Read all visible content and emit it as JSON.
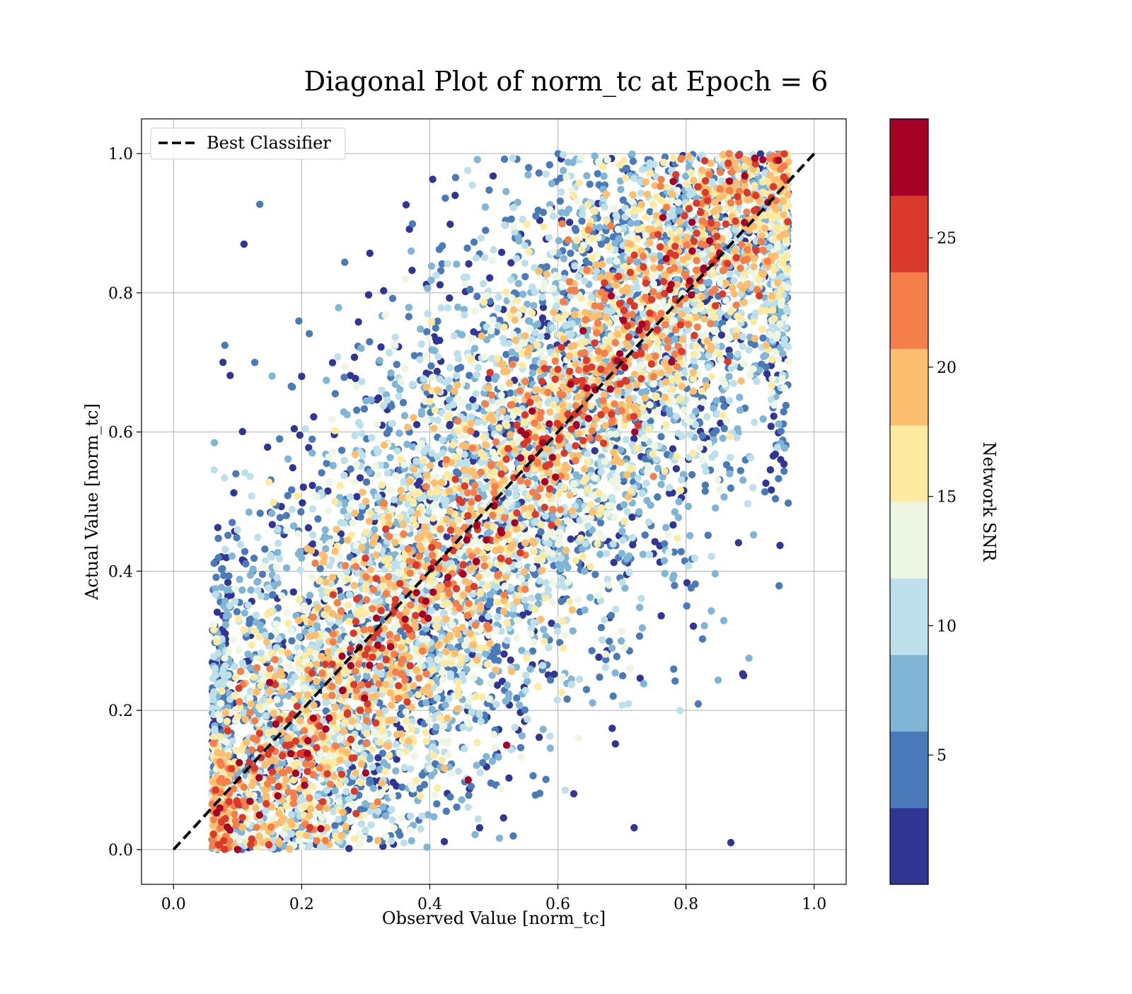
{
  "chart_data": {
    "type": "scatter",
    "title": "Diagonal Plot of norm_tc at Epoch = 6",
    "xlabel": "Observed Value [norm_tc]",
    "ylabel": "Actual Value [norm_tc]",
    "xlim": [
      -0.05,
      1.05
    ],
    "ylim": [
      -0.05,
      1.05
    ],
    "x_ticks": [
      "0.0",
      "0.2",
      "0.4",
      "0.6",
      "0.8",
      "1.0"
    ],
    "y_ticks": [
      "0.0",
      "0.2",
      "0.4",
      "0.6",
      "0.8",
      "1.0"
    ],
    "grid": true,
    "legend": {
      "placement": "top-left",
      "entries": [
        {
          "label": "Best Classifier",
          "style": "dashed",
          "color": "#000000"
        }
      ]
    },
    "reference_line": {
      "label": "Best Classifier",
      "x": [
        0.0,
        1.0
      ],
      "y": [
        0.0,
        1.0
      ],
      "color": "#000000",
      "style": "dashed"
    },
    "colorbar": {
      "label": "Network SNR",
      "min": 0,
      "max": 29.6,
      "ticks": [
        "5",
        "10",
        "15",
        "20",
        "25"
      ],
      "tick_values": [
        5,
        10,
        15,
        20,
        25
      ],
      "colors": [
        "#313695",
        "#4575b4",
        "#74add1",
        "#abd9e9",
        "#e0f3f8",
        "#fee090",
        "#fdae61",
        "#f46d43",
        "#d73027",
        "#a50026"
      ],
      "bands": [
        {
          "color": "#313695",
          "from": 0.0,
          "to": 2.96
        },
        {
          "color": "#4a7ab8",
          "from": 2.96,
          "to": 5.92
        },
        {
          "color": "#80b5d6",
          "from": 5.92,
          "to": 8.88
        },
        {
          "color": "#bde0eb",
          "from": 8.88,
          "to": 11.84
        },
        {
          "color": "#edf6e2",
          "from": 11.84,
          "to": 14.8
        },
        {
          "color": "#feeba1",
          "from": 14.8,
          "to": 17.76
        },
        {
          "color": "#fdbe70",
          "from": 17.76,
          "to": 20.72
        },
        {
          "color": "#f57f4b",
          "from": 20.72,
          "to": 23.68
        },
        {
          "color": "#d93a2c",
          "from": 23.68,
          "to": 26.64
        },
        {
          "color": "#a50026",
          "from": 26.64,
          "to": 29.6
        }
      ]
    },
    "series": [
      {
        "description_points": "dense point cloud; each point has x (observed), y (actual), snr (color)",
        "points_generated_from": {
          "count": 9000,
          "x_range": [
            0.06,
            0.96
          ],
          "y_range": [
            0.0,
            1.0
          ],
          "pattern": "high-SNR points (warm colors) cluster along the diagonal y = x; low-SNR points (blue) spread away from it toward the upper-left and lower-right"
        }
      }
    ],
    "sample_points": [
      {
        "x": 0.78,
        "y": 0.96,
        "snr": 28
      },
      {
        "x": 0.56,
        "y": 0.63,
        "snr": 27
      },
      {
        "x": 0.72,
        "y": 0.6,
        "snr": 27
      },
      {
        "x": 0.15,
        "y": 0.24,
        "snr": 27
      },
      {
        "x": 0.3,
        "y": 0.11,
        "snr": 27
      },
      {
        "x": 0.46,
        "y": 0.1,
        "snr": 27
      },
      {
        "x": 0.52,
        "y": 0.15,
        "snr": 27
      },
      {
        "x": 0.1,
        "y": 0.0,
        "snr": 27
      },
      {
        "x": 0.23,
        "y": 0.03,
        "snr": 27
      },
      {
        "x": 0.2,
        "y": 0.68,
        "snr": 2
      },
      {
        "x": 0.11,
        "y": 0.87,
        "snr": 2
      },
      {
        "x": 0.87,
        "y": 0.01,
        "snr": 2
      },
      {
        "x": 0.89,
        "y": 0.25,
        "snr": 2
      }
    ]
  }
}
